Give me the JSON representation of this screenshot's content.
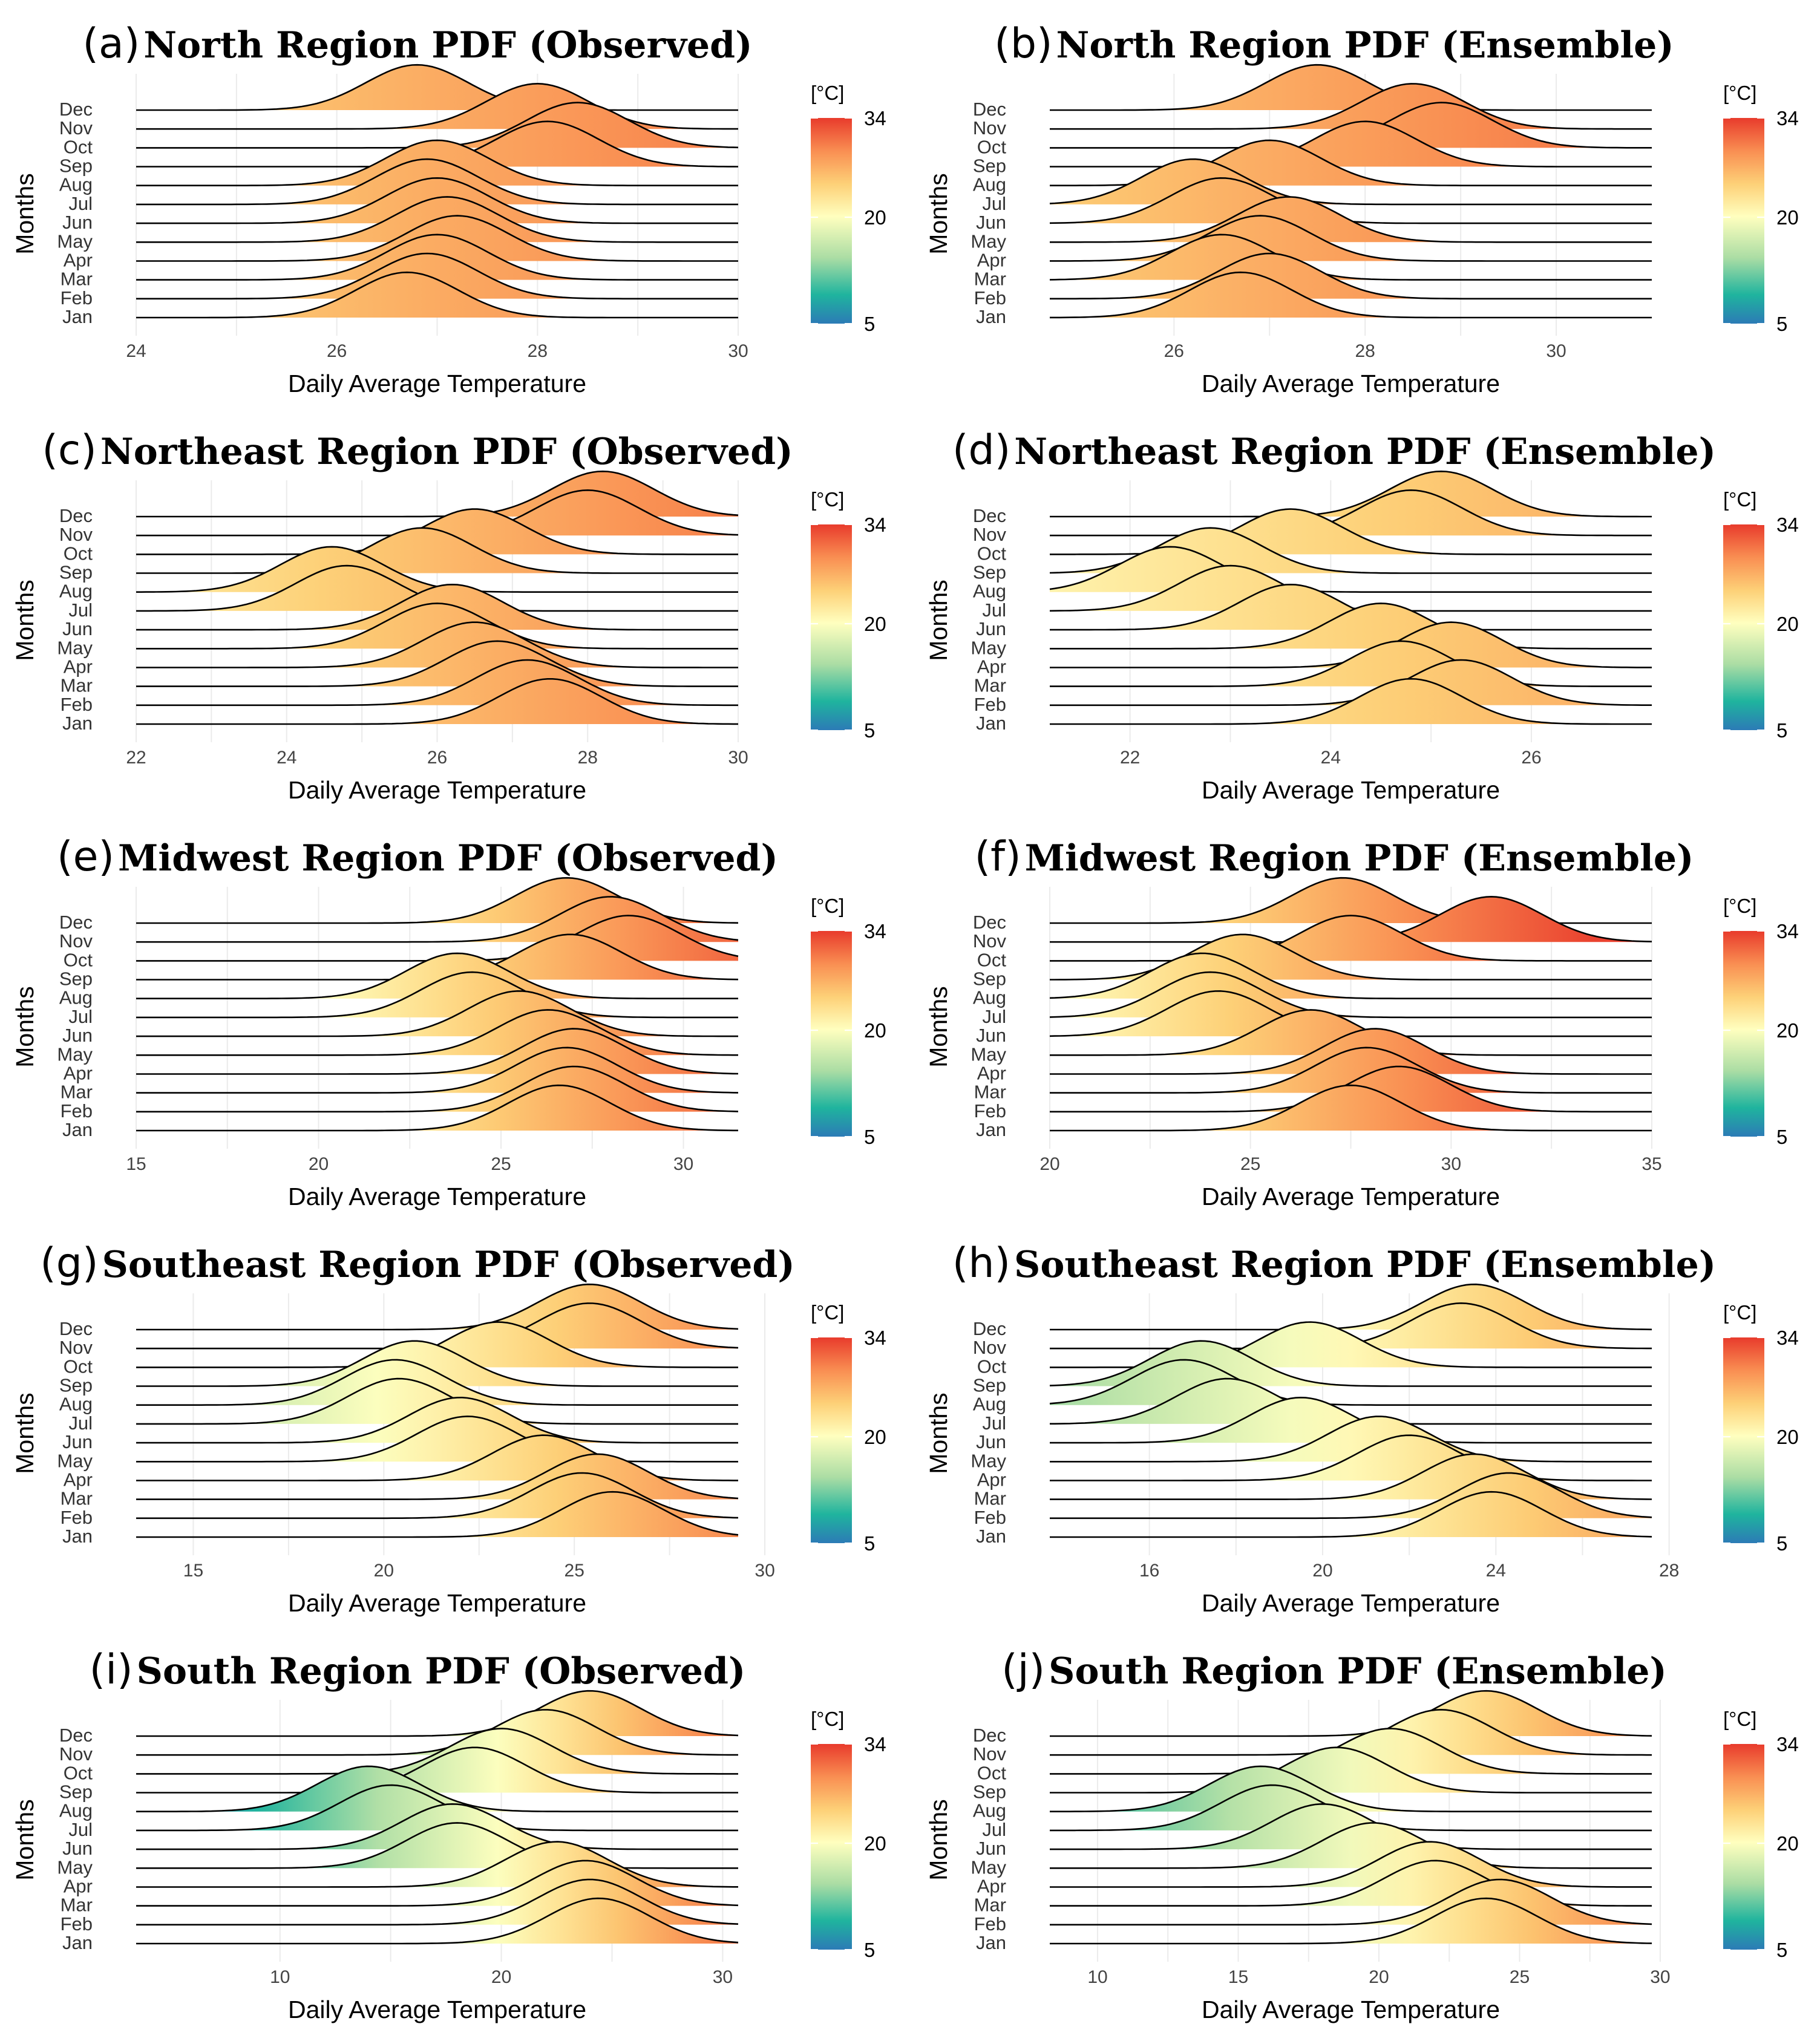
{
  "figure": {
    "x_axis_label": "Daily Average Temperature",
    "y_axis_label": "Months",
    "colorbar": {
      "title": "[°C]",
      "ticks": [
        "34",
        "20",
        "5"
      ],
      "min": 5,
      "mid": 20,
      "max": 34,
      "colors": [
        "#2c7bb6",
        "#1fb49e",
        "#abdda4",
        "#ffffbf",
        "#fdd077",
        "#f98e52",
        "#e83b2c"
      ]
    },
    "months_bottom_to_top": [
      "Jan",
      "Feb",
      "Mar",
      "Apr",
      "May",
      "Jun",
      "Jul",
      "Aug",
      "Sep",
      "Oct",
      "Nov",
      "Dec"
    ]
  },
  "chart_data": [
    {
      "panel": "(a)",
      "title": "North Region PDF (Observed)",
      "type": "ridgeline",
      "xlim": [
        24,
        30
      ],
      "x_ticks": [
        "24",
        "26",
        "28",
        "30"
      ],
      "x_tick_values": [
        24,
        26,
        28,
        30
      ],
      "modes": [
        26.7,
        26.9,
        27.0,
        27.2,
        27.1,
        27.0,
        26.9,
        27.0,
        28.1,
        28.4,
        28.0,
        26.8
      ]
    },
    {
      "panel": "(b)",
      "title": "North Region PDF (Ensemble)",
      "type": "ridgeline",
      "xlim": [
        24.7,
        31
      ],
      "x_ticks": [
        "26",
        "28",
        "30"
      ],
      "x_tick_values": [
        26,
        28,
        30
      ],
      "modes": [
        26.7,
        27.0,
        26.5,
        26.9,
        27.2,
        26.5,
        26.2,
        27.0,
        28.0,
        28.8,
        28.5,
        27.5
      ]
    },
    {
      "panel": "(c)",
      "title": "Northeast Region PDF (Observed)",
      "type": "ridgeline",
      "xlim": [
        22,
        30
      ],
      "x_ticks": [
        "22",
        "24",
        "26",
        "28",
        "30"
      ],
      "x_tick_values": [
        22,
        24,
        26,
        28,
        30
      ],
      "modes": [
        27.5,
        27.2,
        26.8,
        26.5,
        26.0,
        26.2,
        24.8,
        24.6,
        25.8,
        26.5,
        28.0,
        28.2
      ]
    },
    {
      "panel": "(d)",
      "title": "Northeast Region PDF (Ensemble)",
      "type": "ridgeline",
      "xlim": [
        21.2,
        27.2
      ],
      "x_ticks": [
        "22",
        "24",
        "26"
      ],
      "x_tick_values": [
        22,
        24,
        26
      ],
      "modes": [
        24.8,
        25.3,
        24.7,
        25.2,
        24.5,
        23.6,
        23.0,
        22.4,
        22.8,
        23.6,
        24.8,
        25.1
      ]
    },
    {
      "panel": "(e)",
      "title": "Midwest Region PDF (Observed)",
      "type": "ridgeline",
      "xlim": [
        15,
        31.5
      ],
      "x_ticks": [
        "15",
        "20",
        "25",
        "30"
      ],
      "x_tick_values": [
        15,
        20,
        25,
        30
      ],
      "modes": [
        26.6,
        27.0,
        26.8,
        27.0,
        26.3,
        25.5,
        24.2,
        23.8,
        26.9,
        28.5,
        28.0,
        26.8
      ]
    },
    {
      "panel": "(f)",
      "title": "Midwest Region PDF (Ensemble)",
      "type": "ridgeline",
      "xlim": [
        20,
        35
      ],
      "x_ticks": [
        "20",
        "25",
        "30",
        "35"
      ],
      "x_tick_values": [
        20,
        25,
        30,
        35
      ],
      "modes": [
        27.5,
        28.7,
        27.9,
        28.1,
        26.5,
        24.2,
        24.0,
        23.8,
        24.8,
        27.5,
        31.0,
        27.3
      ]
    },
    {
      "panel": "(g)",
      "title": "Southeast Region PDF (Observed)",
      "type": "ridgeline",
      "xlim": [
        13.5,
        29.3
      ],
      "x_ticks": [
        "15",
        "20",
        "25",
        "30"
      ],
      "x_tick_values": [
        15,
        20,
        25,
        30
      ],
      "modes": [
        26.0,
        25.2,
        25.6,
        24.2,
        22.2,
        22.0,
        20.4,
        20.3,
        20.8,
        23.0,
        25.4,
        25.4
      ]
    },
    {
      "panel": "(h)",
      "title": "Southeast Region PDF (Ensemble)",
      "type": "ridgeline",
      "xlim": [
        13.7,
        27.6
      ],
      "x_ticks": [
        "16",
        "20",
        "24",
        "28"
      ],
      "x_tick_values": [
        16,
        20,
        24,
        28
      ],
      "modes": [
        23.9,
        24.3,
        23.5,
        22.0,
        21.3,
        19.5,
        17.8,
        16.8,
        17.2,
        19.7,
        23.2,
        23.5
      ]
    },
    {
      "panel": "(i)",
      "title": "South Region PDF (Observed)",
      "type": "ridgeline",
      "xlim": [
        3.5,
        30.7
      ],
      "x_ticks": [
        "10",
        "20",
        "30"
      ],
      "x_tick_values": [
        10,
        20,
        30
      ],
      "modes": [
        24.4,
        24.0,
        23.8,
        22.5,
        18.0,
        17.8,
        15.0,
        14.0,
        18.8,
        20.0,
        22.0,
        24.0
      ]
    },
    {
      "panel": "(j)",
      "title": "South Region PDF (Ensemble)",
      "type": "ridgeline",
      "xlim": [
        8.3,
        29.7
      ],
      "x_ticks": [
        "10",
        "15",
        "20",
        "25",
        "30"
      ],
      "x_tick_values": [
        10,
        15,
        20,
        25,
        30
      ],
      "modes": [
        23.8,
        24.3,
        22.0,
        21.8,
        19.8,
        18.0,
        16.2,
        15.8,
        18.5,
        20.4,
        22.2,
        23.8
      ]
    }
  ]
}
